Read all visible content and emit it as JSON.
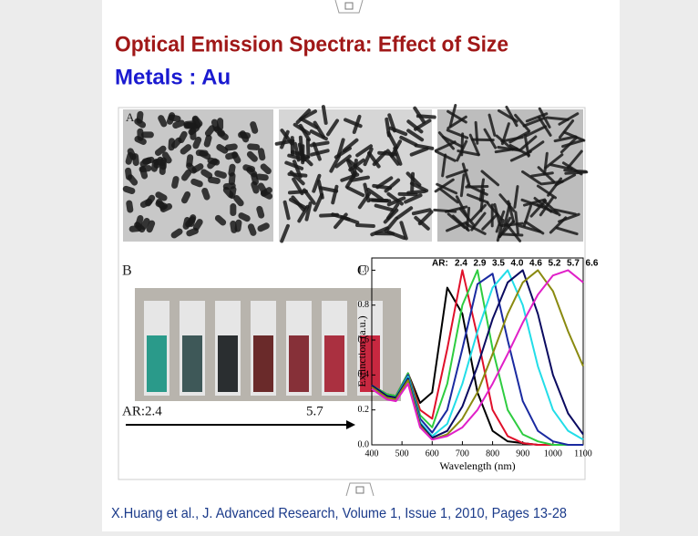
{
  "slide": {
    "title": "Optical  Emission Spectra: Effect of Size",
    "subtitle": "Metals : Au",
    "citation": "X.Huang et al., J. Advanced Research, Volume 1, Issue 1, 2010, Pages 13-28"
  },
  "figure": {
    "panel_a_label": "A",
    "panel_b_label": "B",
    "ar_start": "AR:2.4",
    "ar_end": "5.7"
  },
  "chart_data": {
    "type": "line",
    "panel_label": "C",
    "legend_title": "AR:",
    "xlabel": "Wavelength (nm)",
    "ylabel": "Extinction (a.u.)",
    "x": [
      400,
      450,
      480,
      520,
      560,
      600,
      650,
      700,
      750,
      800,
      850,
      900,
      950,
      1000,
      1050,
      1100
    ],
    "series": [
      {
        "name": "2.4",
        "color": "#000000",
        "values": [
          0.34,
          0.29,
          0.28,
          0.41,
          0.24,
          0.3,
          0.9,
          0.75,
          0.3,
          0.08,
          0.02,
          0.01,
          0,
          0,
          0,
          0
        ]
      },
      {
        "name": "2.9",
        "color": "#e0102a",
        "values": [
          0.34,
          0.29,
          0.28,
          0.41,
          0.2,
          0.15,
          0.55,
          1.0,
          0.62,
          0.2,
          0.05,
          0.01,
          0,
          0,
          0,
          0
        ]
      },
      {
        "name": "3.5",
        "color": "#2ecc40",
        "values": [
          0.34,
          0.29,
          0.28,
          0.41,
          0.17,
          0.1,
          0.35,
          0.8,
          1.0,
          0.55,
          0.2,
          0.06,
          0.02,
          0,
          0,
          0
        ]
      },
      {
        "name": "4.0",
        "color": "#1a2aa0",
        "values": [
          0.34,
          0.28,
          0.27,
          0.4,
          0.15,
          0.07,
          0.2,
          0.55,
          0.92,
          0.98,
          0.6,
          0.25,
          0.08,
          0.02,
          0,
          0
        ]
      },
      {
        "name": "4.6",
        "color": "#22dde8",
        "values": [
          0.34,
          0.28,
          0.27,
          0.39,
          0.13,
          0.05,
          0.12,
          0.35,
          0.65,
          0.9,
          1.0,
          0.8,
          0.45,
          0.2,
          0.08,
          0.03
        ]
      },
      {
        "name": "5.2",
        "color": "#0a0a60",
        "values": [
          0.34,
          0.28,
          0.27,
          0.38,
          0.12,
          0.04,
          0.08,
          0.22,
          0.45,
          0.72,
          0.93,
          1.0,
          0.75,
          0.4,
          0.18,
          0.06
        ]
      },
      {
        "name": "5.7",
        "color": "#8a8a10",
        "values": [
          0.33,
          0.27,
          0.26,
          0.37,
          0.11,
          0.03,
          0.06,
          0.15,
          0.3,
          0.52,
          0.75,
          0.93,
          1.0,
          0.88,
          0.65,
          0.45
        ]
      },
      {
        "name": "6.6",
        "color": "#e020c8",
        "values": [
          0.32,
          0.26,
          0.25,
          0.35,
          0.1,
          0.03,
          0.05,
          0.1,
          0.2,
          0.35,
          0.52,
          0.7,
          0.86,
          0.97,
          1.0,
          0.93
        ]
      }
    ],
    "xlim": [
      400,
      1100
    ],
    "ylim": [
      0,
      1.07
    ],
    "xticks": [
      400,
      500,
      600,
      700,
      800,
      900,
      1000,
      1100
    ],
    "yticks": [
      {
        "value": 0,
        "label": "0.0"
      },
      {
        "value": 0.2,
        "label": "0.2"
      },
      {
        "value": 0.4,
        "label": "0.4"
      },
      {
        "value": 0.6,
        "label": "0.6"
      },
      {
        "value": 0.8,
        "label": "0.8"
      },
      {
        "value": 1,
        "label": "1.0"
      }
    ]
  }
}
